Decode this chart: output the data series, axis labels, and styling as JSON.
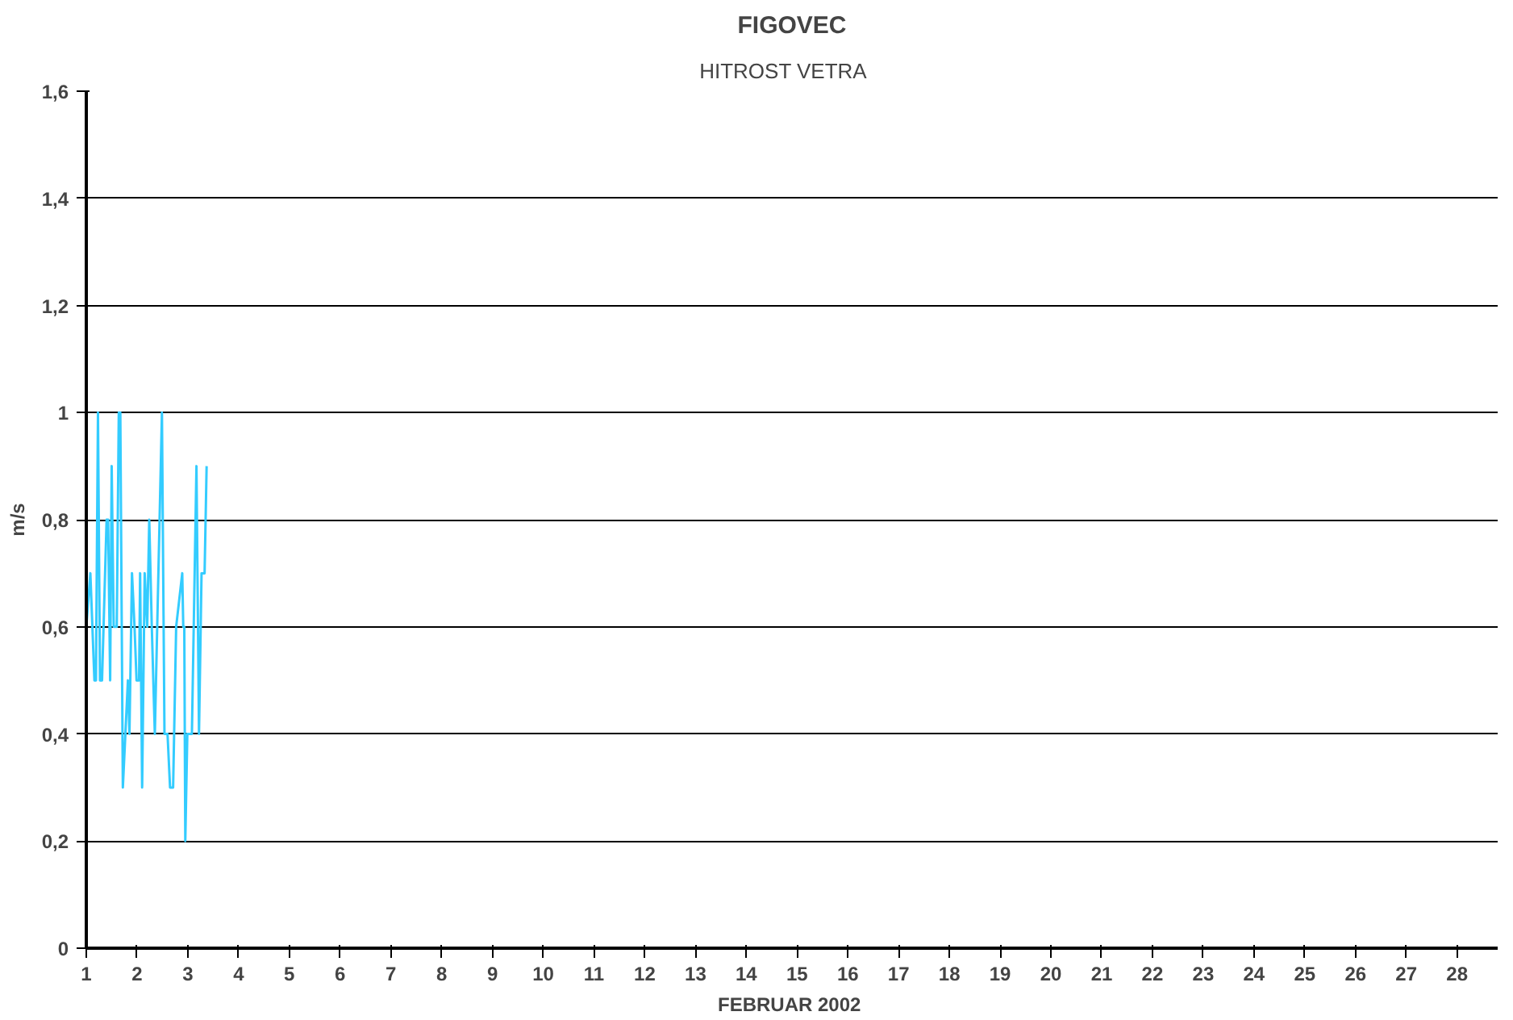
{
  "chart_data": {
    "type": "line",
    "title": "FIGOVEC",
    "subtitle": "HITROST    VETRA",
    "xlabel": "FEBRUAR  2002",
    "ylabel": "m/s",
    "x": [
      1.0,
      1.08,
      1.16,
      1.19,
      1.23,
      1.27,
      1.31,
      1.4,
      1.43,
      1.47,
      1.5,
      1.54,
      1.6,
      1.64,
      1.67,
      1.72,
      1.77,
      1.82,
      1.85,
      1.9,
      1.95,
      1.99,
      2.04,
      2.06,
      2.1,
      2.15,
      2.2,
      2.24,
      2.29,
      2.35,
      2.49,
      2.54,
      2.6,
      2.65,
      2.71,
      2.77,
      2.89,
      2.91,
      2.93,
      2.95,
      2.99,
      3.08,
      3.17,
      3.22,
      3.27,
      3.33,
      3.37
    ],
    "series": [
      {
        "color": "#33ccff",
        "values": [
          0.6,
          0.7,
          0.5,
          0.5,
          1.0,
          0.5,
          0.5,
          0.8,
          0.8,
          0.5,
          0.9,
          0.6,
          0.6,
          1.0,
          1.0,
          0.3,
          0.4,
          0.5,
          0.4,
          0.7,
          0.6,
          0.5,
          0.5,
          0.7,
          0.3,
          0.7,
          0.6,
          0.8,
          0.6,
          0.4,
          1.0,
          0.4,
          0.4,
          0.3,
          0.3,
          0.6,
          0.7,
          0.6,
          0.6,
          0.2,
          0.4,
          0.4,
          0.9,
          0.4,
          0.7,
          0.7,
          0.9
        ]
      }
    ],
    "xlim": [
      1,
      28.8
    ],
    "xticks": [
      1,
      2,
      3,
      4,
      5,
      6,
      7,
      8,
      9,
      10,
      11,
      12,
      13,
      14,
      15,
      16,
      17,
      18,
      19,
      20,
      21,
      22,
      23,
      24,
      25,
      26,
      27,
      28
    ],
    "ylim": [
      0,
      1.6
    ],
    "yticks": [
      {
        "value": 0,
        "label": "0"
      },
      {
        "value": 0.2,
        "label": "0,2"
      },
      {
        "value": 0.4,
        "label": "0,4"
      },
      {
        "value": 0.6,
        "label": "0,6"
      },
      {
        "value": 0.8,
        "label": "0,8"
      },
      {
        "value": 1,
        "label": "1"
      },
      {
        "value": 1.2,
        "label": "1,2"
      },
      {
        "value": 1.4,
        "label": "1,4"
      },
      {
        "value": 1.6,
        "label": "1,6"
      }
    ],
    "grid": "y",
    "marker": "none",
    "line_style": "solid"
  }
}
